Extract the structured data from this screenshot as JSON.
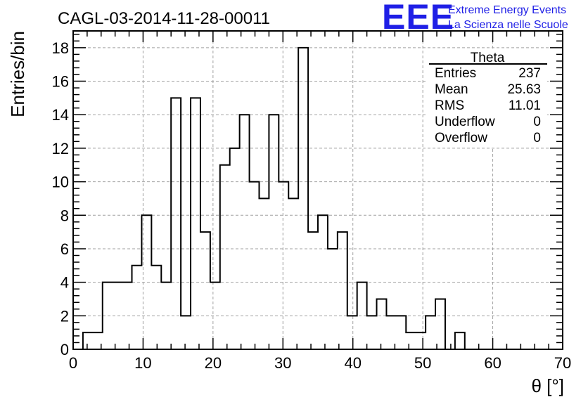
{
  "header": {
    "title": "CAGL-03-2014-11-28-00011",
    "logo_text": "EEE",
    "logo_line1": "Extreme Energy Events",
    "logo_line2": "La Scienza nelle Scuole",
    "logo_color": "#1f1fe6"
  },
  "stats_box": {
    "name": "Theta",
    "rows": [
      {
        "label": "Entries",
        "value": "237"
      },
      {
        "label": "Mean",
        "value": "25.63"
      },
      {
        "label": "RMS",
        "value": "11.01"
      },
      {
        "label": "Underflow",
        "value": "0"
      },
      {
        "label": "Overflow",
        "value": "0"
      }
    ]
  },
  "chart_data": {
    "type": "bar",
    "style": "step-histogram",
    "title": "CAGL-03-2014-11-28-00011",
    "xlabel": "θ [°]",
    "ylabel": "Entries/bin",
    "xlim": [
      0,
      70
    ],
    "ylim": [
      0,
      19
    ],
    "grid": true,
    "x_ticks": [
      0,
      10,
      20,
      30,
      40,
      50,
      60,
      70
    ],
    "y_ticks": [
      0,
      2,
      4,
      6,
      8,
      10,
      12,
      14,
      16,
      18
    ],
    "bin_width": 1.4,
    "bin_start": 1.4,
    "values": [
      1,
      1,
      4,
      4,
      4,
      5,
      8,
      5,
      4,
      15,
      2,
      15,
      7,
      4,
      11,
      12,
      14,
      10,
      9,
      14,
      10,
      9,
      18,
      7,
      8,
      6,
      7,
      2,
      4,
      2,
      3,
      2,
      2,
      1,
      1,
      2,
      3,
      0,
      1
    ],
    "line_color": "#000000"
  }
}
